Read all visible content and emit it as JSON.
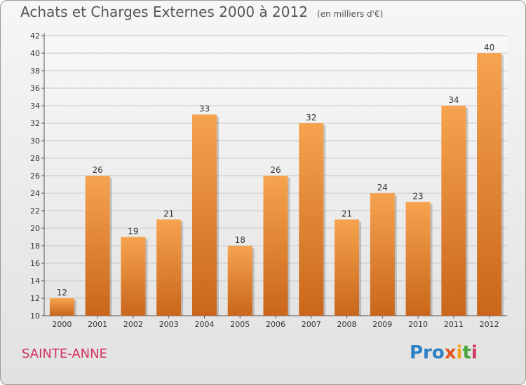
{
  "title": "Achats et Charges Externes 2000 à 2012",
  "subtitle": "(en milliers d'€)",
  "city": "SAINTE-ANNE",
  "logo": {
    "text": "Proxiti",
    "parts": [
      "Pro",
      "x",
      "i",
      "t",
      "i"
    ]
  },
  "colors": {
    "bar_top": "#f6a34f",
    "bar_bottom": "#c9661a",
    "grid": "#c8c8c8",
    "city": "#d0345f"
  },
  "chart_data": {
    "type": "bar",
    "title": "Achats et Charges Externes 2000 à 2012",
    "subtitle": "(en milliers d'€)",
    "xlabel": "",
    "ylabel": "",
    "categories": [
      "2000",
      "2001",
      "2002",
      "2003",
      "2004",
      "2005",
      "2006",
      "2007",
      "2008",
      "2009",
      "2010",
      "2011",
      "2012"
    ],
    "values": [
      12,
      26,
      19,
      21,
      33,
      18,
      26,
      32,
      21,
      24,
      23,
      34,
      40
    ],
    "ylim": [
      10,
      42
    ],
    "yticks": [
      10,
      12,
      14,
      16,
      18,
      20,
      22,
      24,
      26,
      28,
      30,
      32,
      34,
      36,
      38,
      40,
      42
    ],
    "grid": true,
    "data_labels": true
  }
}
